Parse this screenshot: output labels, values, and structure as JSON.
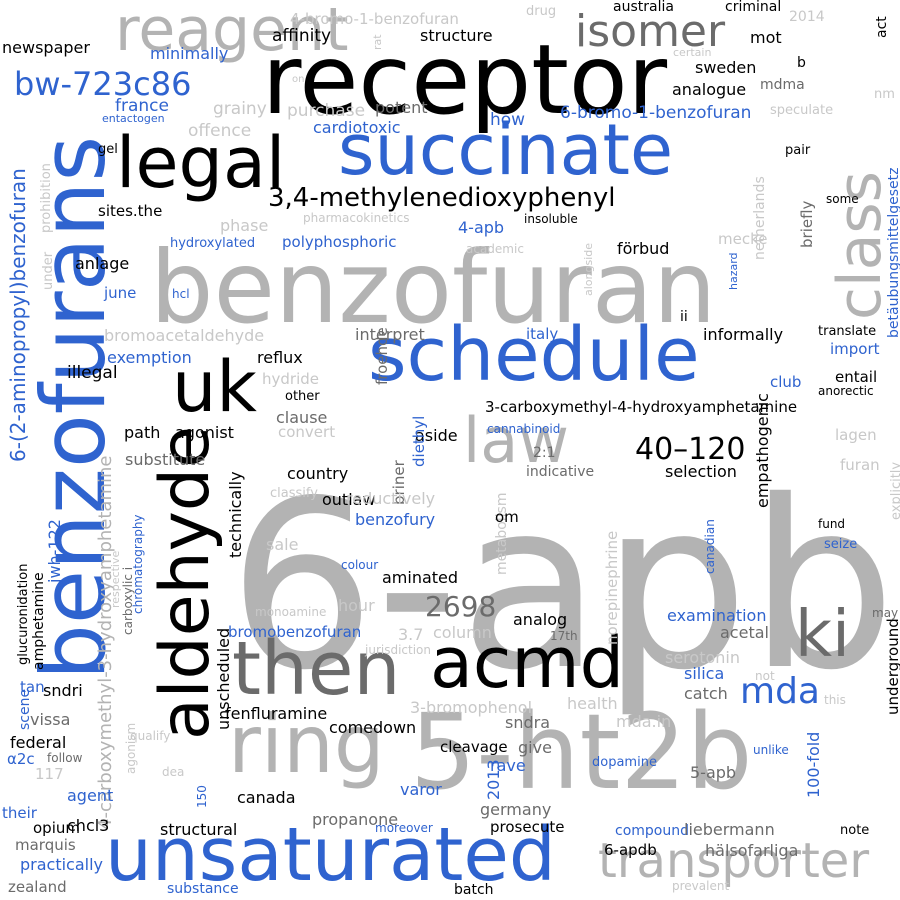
{
  "palette": {
    "black": "#000000",
    "dark_gray": "#6b6b6b",
    "gray": "#b3b3b3",
    "light_gray": "#c8c8c8",
    "blue": "#2f63cf",
    "white": "#ffffff"
  },
  "words": [
    {
      "text": "6-apb",
      "color": "gray"
    },
    {
      "text": "benzofuran",
      "color": "gray"
    },
    {
      "text": "receptor",
      "color": "black"
    },
    {
      "text": "benzofurans",
      "color": "blue"
    },
    {
      "text": "succinate",
      "color": "blue"
    },
    {
      "text": "schedule",
      "color": "blue"
    },
    {
      "text": "5-ht2b",
      "color": "gray"
    },
    {
      "text": "unsaturated",
      "color": "blue"
    },
    {
      "text": "ring",
      "color": "gray"
    },
    {
      "text": "aldehyde",
      "color": "black"
    },
    {
      "text": "acmd",
      "color": "black"
    },
    {
      "text": "then",
      "color": "dark_gray"
    },
    {
      "text": "legal",
      "color": "black"
    },
    {
      "text": "uk",
      "color": "black"
    },
    {
      "text": "class",
      "color": "gray"
    },
    {
      "text": "reagent",
      "color": "gray"
    },
    {
      "text": "law",
      "color": "gray"
    },
    {
      "text": "ki",
      "color": "dark_gray"
    },
    {
      "text": "isomer",
      "color": "dark_gray"
    },
    {
      "text": "transporter",
      "color": "gray"
    },
    {
      "text": "mda",
      "color": "blue"
    },
    {
      "text": "bw-723c86",
      "color": "blue"
    },
    {
      "text": "3,4-methylenedioxyphenyl",
      "color": "black"
    },
    {
      "text": "40–120",
      "color": "black"
    },
    {
      "text": "2698",
      "color": "dark_gray"
    },
    {
      "text": "6-(2-aminopropyl)benzofuran",
      "color": "blue"
    },
    {
      "text": "4-carboxymethyl-3-hydroxyamphetamine",
      "color": "gray"
    },
    {
      "text": "3-carboxymethyl-4-hydroxyamphetamine",
      "color": "black"
    },
    {
      "text": "4-bromo-1-benzofuran",
      "color": "light_gray"
    },
    {
      "text": "6-bromo-1-benzofuran",
      "color": "blue"
    },
    {
      "text": "affinity",
      "color": "black"
    },
    {
      "text": "structure",
      "color": "black"
    },
    {
      "text": "newspaper",
      "color": "black"
    },
    {
      "text": "minimally",
      "color": "blue"
    },
    {
      "text": "sweden",
      "color": "black"
    },
    {
      "text": "mot",
      "color": "black"
    },
    {
      "text": "mdma",
      "color": "dark_gray"
    },
    {
      "text": "analogue",
      "color": "black"
    },
    {
      "text": "france",
      "color": "blue"
    },
    {
      "text": "grainy",
      "color": "light_gray"
    },
    {
      "text": "purchase",
      "color": "light_gray"
    },
    {
      "text": "potent",
      "color": "dark_gray"
    },
    {
      "text": "offence",
      "color": "light_gray"
    },
    {
      "text": "cardiotoxic",
      "color": "blue"
    },
    {
      "text": "how",
      "color": "blue"
    },
    {
      "text": "entactogen",
      "color": "blue"
    },
    {
      "text": "gel",
      "color": "black"
    },
    {
      "text": "prohibition",
      "color": "light_gray"
    },
    {
      "text": "sites.the",
      "color": "black"
    },
    {
      "text": "phase",
      "color": "light_gray"
    },
    {
      "text": "pharmacokinetics",
      "color": "light_gray"
    },
    {
      "text": "insoluble",
      "color": "black"
    },
    {
      "text": "hydroxylated",
      "color": "blue"
    },
    {
      "text": "polyphosphoric",
      "color": "blue"
    },
    {
      "text": "4-apb",
      "color": "blue"
    },
    {
      "text": "academic",
      "color": "light_gray"
    },
    {
      "text": "förbud",
      "color": "black"
    },
    {
      "text": "mecke",
      "color": "light_gray"
    },
    {
      "text": "briefly",
      "color": "dark_gray"
    },
    {
      "text": "netherlands",
      "color": "light_gray"
    },
    {
      "text": "pair",
      "color": "black"
    },
    {
      "text": "some",
      "color": "black"
    },
    {
      "text": "betäubungsmittelgesetz",
      "color": "blue"
    },
    {
      "text": "nm",
      "color": "light_gray"
    },
    {
      "text": "speculate",
      "color": "light_gray"
    },
    {
      "text": "b",
      "color": "black"
    },
    {
      "text": "certain",
      "color": "light_gray"
    },
    {
      "text": "2014",
      "color": "light_gray"
    },
    {
      "text": "act",
      "color": "black"
    },
    {
      "text": "drug",
      "color": "light_gray"
    },
    {
      "text": "australia",
      "color": "black"
    },
    {
      "text": "criminal",
      "color": "black"
    },
    {
      "text": "rat",
      "color": "light_gray"
    },
    {
      "text": "on",
      "color": "light_gray"
    },
    {
      "text": "anlage",
      "color": "black"
    },
    {
      "text": "under",
      "color": "light_gray"
    },
    {
      "text": "june",
      "color": "blue"
    },
    {
      "text": "hcl",
      "color": "blue"
    },
    {
      "text": "bromoacetaldehyde",
      "color": "light_gray"
    },
    {
      "text": "interpret",
      "color": "dark_gray"
    },
    {
      "text": "italy",
      "color": "blue"
    },
    {
      "text": "informally",
      "color": "black"
    },
    {
      "text": "ii",
      "color": "black"
    },
    {
      "text": "alongside",
      "color": "light_gray"
    },
    {
      "text": "hazard",
      "color": "blue"
    },
    {
      "text": "translate",
      "color": "black"
    },
    {
      "text": "import",
      "color": "blue"
    },
    {
      "text": "anorectic",
      "color": "black"
    },
    {
      "text": "entail",
      "color": "black"
    },
    {
      "text": "club",
      "color": "blue"
    },
    {
      "text": "exemption",
      "color": "blue"
    },
    {
      "text": "reflux",
      "color": "black"
    },
    {
      "text": "froehde",
      "color": "dark_gray"
    },
    {
      "text": "illegal",
      "color": "black"
    },
    {
      "text": "hydride",
      "color": "light_gray"
    },
    {
      "text": "other",
      "color": "black"
    },
    {
      "text": "clause",
      "color": "dark_gray"
    },
    {
      "text": "convert",
      "color": "light_gray"
    },
    {
      "text": "path",
      "color": "black"
    },
    {
      "text": "agonist",
      "color": "black"
    },
    {
      "text": "aside",
      "color": "black"
    },
    {
      "text": "cannabinoid",
      "color": "blue"
    },
    {
      "text": "diethyl",
      "color": "blue"
    },
    {
      "text": "briner",
      "color": "dark_gray"
    },
    {
      "text": "2:1",
      "color": "dark_gray"
    },
    {
      "text": "indicative",
      "color": "dark_gray"
    },
    {
      "text": "lagen",
      "color": "light_gray"
    },
    {
      "text": "furan",
      "color": "light_gray"
    },
    {
      "text": "explicitly",
      "color": "light_gray"
    },
    {
      "text": "substitute",
      "color": "dark_gray"
    },
    {
      "text": "country",
      "color": "black"
    },
    {
      "text": "outlaw",
      "color": "black"
    },
    {
      "text": "selection",
      "color": "black"
    },
    {
      "text": "empathogenic",
      "color": "black"
    },
    {
      "text": "metabolism",
      "color": "light_gray"
    },
    {
      "text": "reductively",
      "color": "light_gray"
    },
    {
      "text": "classify",
      "color": "light_gray"
    },
    {
      "text": "om",
      "color": "black"
    },
    {
      "text": "benzofury",
      "color": "blue"
    },
    {
      "text": "technically",
      "color": "black"
    },
    {
      "text": "sale",
      "color": "light_gray"
    },
    {
      "text": "colour",
      "color": "blue"
    },
    {
      "text": "aminated",
      "color": "black"
    },
    {
      "text": "canadian",
      "color": "blue"
    },
    {
      "text": "fund",
      "color": "black"
    },
    {
      "text": "seize",
      "color": "blue"
    },
    {
      "text": "may",
      "color": "dark_gray"
    },
    {
      "text": "jwh-122",
      "color": "blue"
    },
    {
      "text": "chromatography",
      "color": "blue"
    },
    {
      "text": "glucuronidation",
      "color": "black"
    },
    {
      "text": "amphetamine",
      "color": "black"
    },
    {
      "text": "carboxylic i",
      "color": "dark_gray"
    },
    {
      "text": "respective",
      "color": "light_gray"
    },
    {
      "text": "monoamine",
      "color": "light_gray"
    },
    {
      "text": "hour",
      "color": "light_gray"
    },
    {
      "text": "3.7",
      "color": "light_gray"
    },
    {
      "text": "column",
      "color": "light_gray"
    },
    {
      "text": "analog",
      "color": "black"
    },
    {
      "text": "17th",
      "color": "dark_gray"
    },
    {
      "text": "norepinephrine",
      "color": "light_gray"
    },
    {
      "text": "examination",
      "color": "blue"
    },
    {
      "text": "acetal",
      "color": "dark_gray"
    },
    {
      "text": "underground",
      "color": "black"
    },
    {
      "text": "bromobenzofuran",
      "color": "blue"
    },
    {
      "text": "unscheduled",
      "color": "black"
    },
    {
      "text": "jurisdiction",
      "color": "light_gray"
    },
    {
      "text": "serotonin",
      "color": "light_gray"
    },
    {
      "text": "silica",
      "color": "blue"
    },
    {
      "text": "not",
      "color": "light_gray"
    },
    {
      "text": "catch",
      "color": "dark_gray"
    },
    {
      "text": "this",
      "color": "light_gray"
    },
    {
      "text": "scene",
      "color": "blue"
    },
    {
      "text": "tan",
      "color": "blue"
    },
    {
      "text": "sndri",
      "color": "black"
    },
    {
      "text": "fenfluramine",
      "color": "black"
    },
    {
      "text": "comedown",
      "color": "black"
    },
    {
      "text": "3-bromophenol",
      "color": "light_gray"
    },
    {
      "text": "health",
      "color": "light_gray"
    },
    {
      "text": "mda.in",
      "color": "light_gray"
    },
    {
      "text": "vissa",
      "color": "dark_gray"
    },
    {
      "text": "qualify",
      "color": "light_gray"
    },
    {
      "text": "agonism",
      "color": "light_gray"
    },
    {
      "text": "sndra",
      "color": "dark_gray"
    },
    {
      "text": "dopamine",
      "color": "blue"
    },
    {
      "text": "unlike",
      "color": "blue"
    },
    {
      "text": "federal",
      "color": "black"
    },
    {
      "text": "α2c",
      "color": "blue"
    },
    {
      "text": "follow",
      "color": "dark_gray"
    },
    {
      "text": "cleavage",
      "color": "black"
    },
    {
      "text": "give",
      "color": "dark_gray"
    },
    {
      "text": "rave",
      "color": "blue"
    },
    {
      "text": "5-apb",
      "color": "dark_gray"
    },
    {
      "text": "117",
      "color": "light_gray"
    },
    {
      "text": "dea",
      "color": "light_gray"
    },
    {
      "text": "agent",
      "color": "blue"
    },
    {
      "text": "150",
      "color": "blue"
    },
    {
      "text": "canada",
      "color": "black"
    },
    {
      "text": "2013",
      "color": "blue"
    },
    {
      "text": "germany",
      "color": "dark_gray"
    },
    {
      "text": "100-fold",
      "color": "blue"
    },
    {
      "text": "their",
      "color": "blue"
    },
    {
      "text": "opium",
      "color": "black"
    },
    {
      "text": "chcl3",
      "color": "black"
    },
    {
      "text": "varor",
      "color": "blue"
    },
    {
      "text": "structural",
      "color": "black"
    },
    {
      "text": "propanone",
      "color": "dark_gray"
    },
    {
      "text": "prosecute",
      "color": "black"
    },
    {
      "text": "moreover",
      "color": "blue"
    },
    {
      "text": "compound",
      "color": "blue"
    },
    {
      "text": "liebermann",
      "color": "dark_gray"
    },
    {
      "text": "note",
      "color": "black"
    },
    {
      "text": "marquis",
      "color": "dark_gray"
    },
    {
      "text": "practically",
      "color": "blue"
    },
    {
      "text": "6-apdb",
      "color": "black"
    },
    {
      "text": "hälsofarliga",
      "color": "dark_gray"
    },
    {
      "text": "zealand",
      "color": "dark_gray"
    },
    {
      "text": "substance",
      "color": "blue"
    },
    {
      "text": "batch",
      "color": "black"
    },
    {
      "text": "prevalent",
      "color": "light_gray"
    }
  ]
}
